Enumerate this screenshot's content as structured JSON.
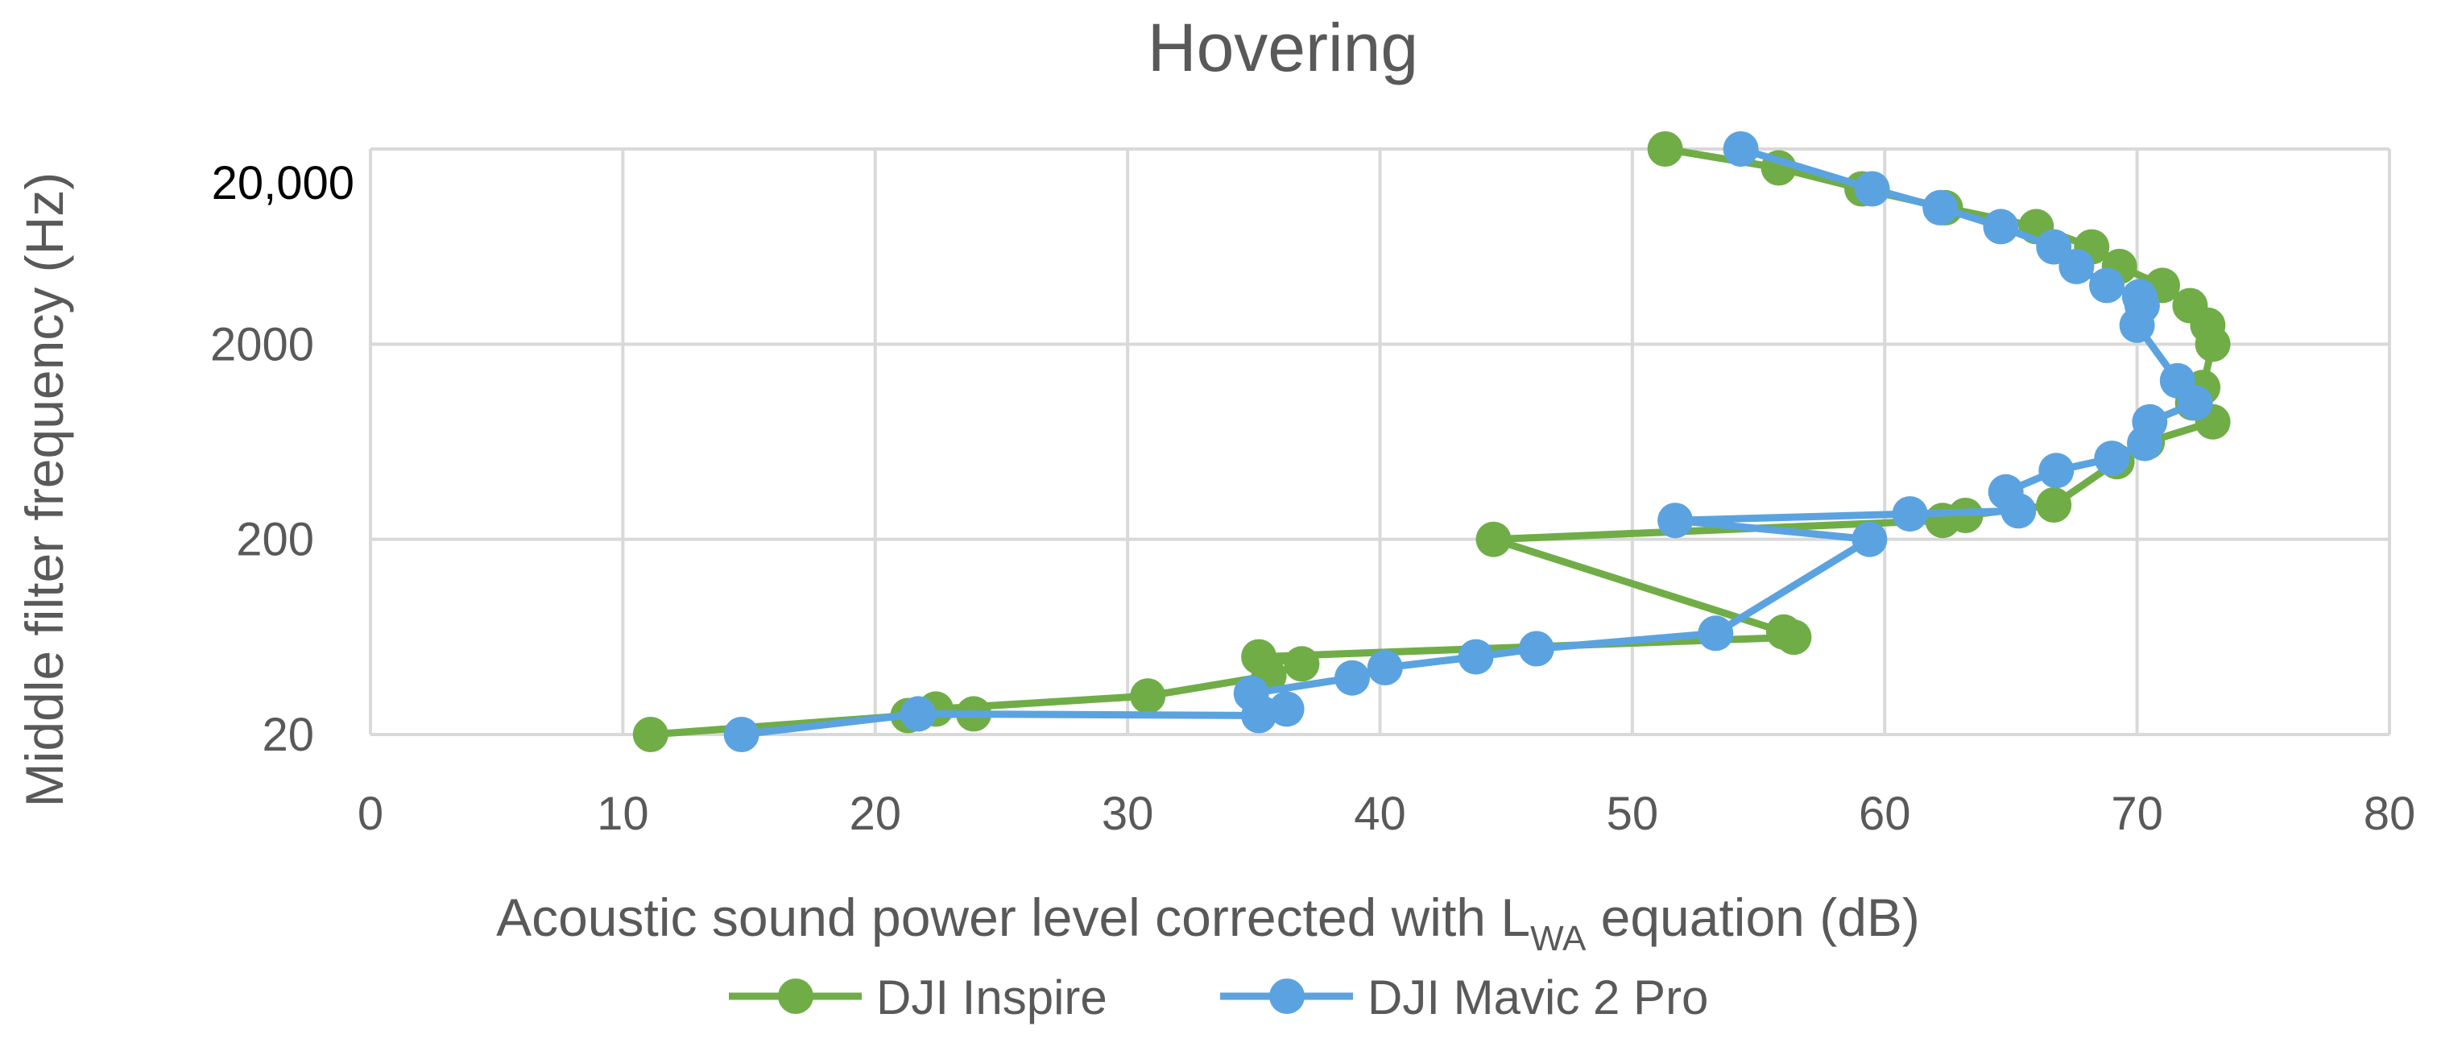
{
  "chart_data": {
    "type": "line",
    "title": "Hovering",
    "xlabel_main": "Acoustic sound power level corrected with L",
    "xlabel_sub": "WA",
    "xlabel_tail": " equation (dB)",
    "ylabel": "Middle filter frequency (Hz)",
    "xlim": [
      0,
      80
    ],
    "x_ticks": [
      "0",
      "10",
      "20",
      "30",
      "40",
      "50",
      "60",
      "70",
      "80"
    ],
    "y_scale": "log",
    "ylim": [
      20,
      20000
    ],
    "y_ticks": [
      {
        "value": 20,
        "label": "20"
      },
      {
        "value": 200,
        "label": "200"
      },
      {
        "value": 2000,
        "label": "2000"
      },
      {
        "value": 20000,
        "label": "20,000"
      }
    ],
    "grid": true,
    "legend_position": "bottom",
    "series": [
      {
        "name": "DJI Inspire",
        "color": "#70ad47",
        "points": [
          [
            11.1,
            20
          ],
          [
            21.3,
            25
          ],
          [
            23.9,
            25.5
          ],
          [
            22.4,
            27
          ],
          [
            30.8,
            31.5
          ],
          [
            35.6,
            40
          ],
          [
            36.9,
            46
          ],
          [
            35.2,
            50
          ],
          [
            56.4,
            63
          ],
          [
            56,
            67
          ],
          [
            44.5,
            200
          ],
          [
            62.3,
            250
          ],
          [
            63.2,
            265
          ],
          [
            66.7,
            300
          ],
          [
            69.2,
            500
          ],
          [
            70.4,
            630
          ],
          [
            73,
            800
          ],
          [
            72.2,
            1000
          ],
          [
            72.6,
            1200
          ],
          [
            73,
            2000
          ],
          [
            72.8,
            2500
          ],
          [
            72.1,
            3150
          ],
          [
            71,
            4000
          ],
          [
            69.3,
            5000
          ],
          [
            68.2,
            6300
          ],
          [
            66,
            8000
          ],
          [
            62.4,
            10000
          ],
          [
            59.1,
            12500
          ],
          [
            55.8,
            16000
          ],
          [
            51.3,
            20000
          ]
        ]
      },
      {
        "name": "DJI Mavic 2 Pro",
        "color": "#5ba3e0",
        "points": [
          [
            14.7,
            20
          ],
          [
            21.7,
            25.5
          ],
          [
            35.2,
            25
          ],
          [
            36.3,
            27
          ],
          [
            34.9,
            32.5
          ],
          [
            38.9,
            39
          ],
          [
            40.2,
            44
          ],
          [
            43.8,
            50
          ],
          [
            46.2,
            55
          ],
          [
            53.3,
            66
          ],
          [
            59.4,
            200
          ],
          [
            51.7,
            250
          ],
          [
            61,
            270
          ],
          [
            65.3,
            280
          ],
          [
            64.8,
            350
          ],
          [
            66.8,
            450
          ],
          [
            69,
            520
          ],
          [
            70.3,
            620
          ],
          [
            70.5,
            800
          ],
          [
            72.3,
            1000
          ],
          [
            71.6,
            1300
          ],
          [
            70,
            2500
          ],
          [
            70.2,
            3150
          ],
          [
            70.1,
            3500
          ],
          [
            68.8,
            4000
          ],
          [
            67.6,
            5000
          ],
          [
            66.7,
            6300
          ],
          [
            64.6,
            8000
          ],
          [
            62.2,
            10000
          ],
          [
            59.5,
            12500
          ],
          [
            54.3,
            20000
          ]
        ]
      }
    ]
  }
}
